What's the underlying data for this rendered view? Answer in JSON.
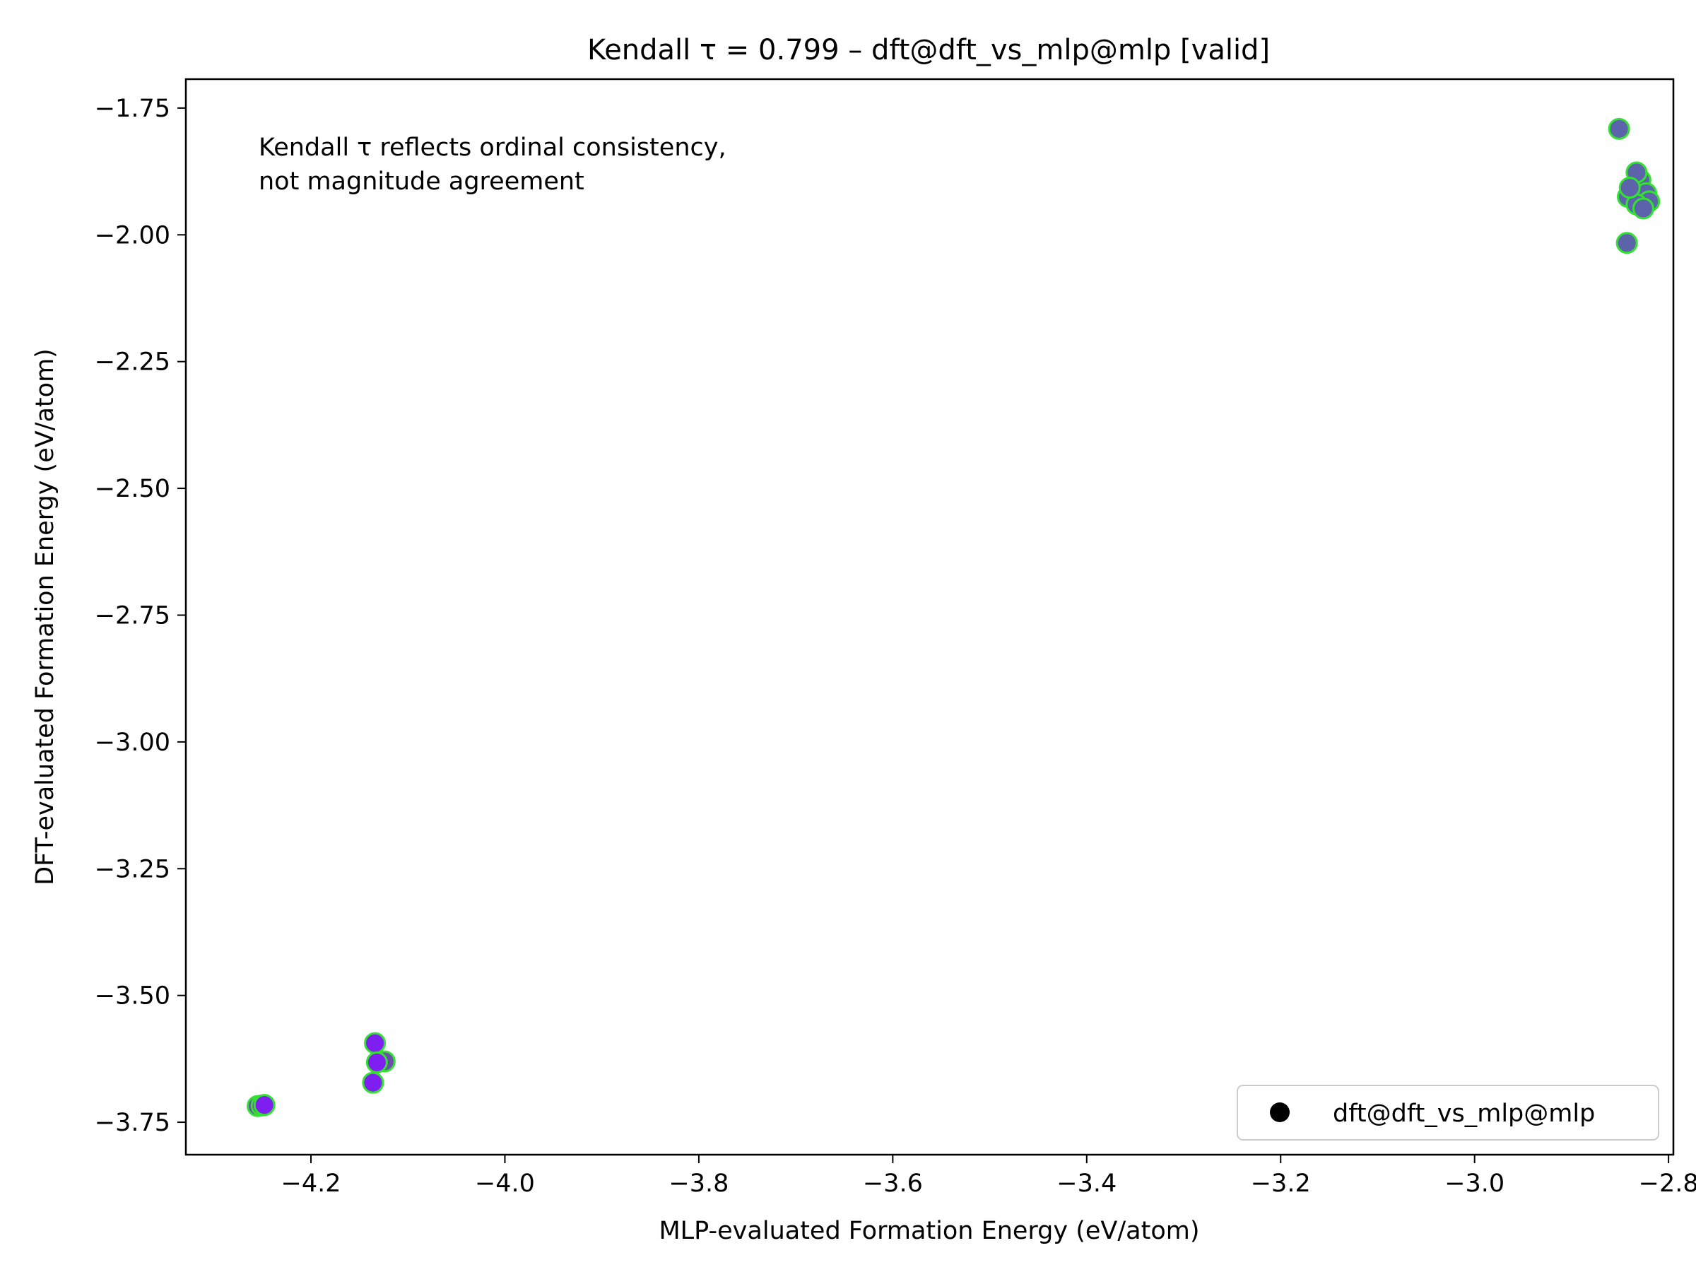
{
  "chart_data": {
    "type": "scatter",
    "title": "Kendall τ = 0.799 – dft@dft_vs_mlp@mlp [valid]",
    "xlabel": "MLP-evaluated Formation Energy (eV/atom)",
    "ylabel": "DFT-evaluated Formation Energy (eV/atom)",
    "xlim": [
      -4.329,
      -2.795
    ],
    "ylim": [
      -3.814,
      -1.693
    ],
    "xticks": [
      -4.2,
      -4.0,
      -3.8,
      -3.6,
      -3.4,
      -3.2,
      -3.0,
      -2.8
    ],
    "xtick_labels": [
      "−4.2",
      "−4.0",
      "−3.8",
      "−3.6",
      "−3.4",
      "−3.2",
      "−3.0",
      "−2.8"
    ],
    "yticks": [
      -1.75,
      -2.0,
      -2.25,
      -2.5,
      -2.75,
      -3.0,
      -3.25,
      -3.5,
      -3.75
    ],
    "ytick_labels": [
      "−1.75",
      "−2.00",
      "−2.25",
      "−2.50",
      "−2.75",
      "−3.00",
      "−3.25",
      "−3.50",
      "−3.75"
    ],
    "grid": false,
    "annotation": [
      "Kendall τ reflects ordinal consistency,",
      "not magnitude agreement"
    ],
    "legend": {
      "position": "lower-right",
      "entries": [
        "dft@dft_vs_mlp@mlp"
      ],
      "marker_color": "#000000"
    },
    "marker_edge_color": "#33e133",
    "series": [
      {
        "name": "dft@dft_vs_mlp@mlp",
        "points": [
          {
            "x": -4.255,
            "y": -3.718,
            "color": "#6b4fa8"
          },
          {
            "x": -4.251,
            "y": -3.717,
            "color": "#6b4fa8"
          },
          {
            "x": -4.248,
            "y": -3.716,
            "color": "#7e1ef0"
          },
          {
            "x": -4.134,
            "y": -3.594,
            "color": "#7e1ef0"
          },
          {
            "x": -4.124,
            "y": -3.63,
            "color": "#6b4fa8"
          },
          {
            "x": -4.132,
            "y": -3.632,
            "color": "#7e1ef0"
          },
          {
            "x": -4.136,
            "y": -3.672,
            "color": "#7e1ef0"
          },
          {
            "x": -2.851,
            "y": -1.791,
            "color": "#5c63aa"
          },
          {
            "x": -2.838,
            "y": -1.91,
            "color": "#5c63aa"
          },
          {
            "x": -2.829,
            "y": -1.892,
            "color": "#5c63aa"
          },
          {
            "x": -2.823,
            "y": -1.918,
            "color": "#5c63aa"
          },
          {
            "x": -2.82,
            "y": -1.934,
            "color": "#5c63aa"
          },
          {
            "x": -2.842,
            "y": -1.925,
            "color": "#5c63aa"
          },
          {
            "x": -2.833,
            "y": -1.94,
            "color": "#5c63aa"
          },
          {
            "x": -2.826,
            "y": -1.948,
            "color": "#5c63aa"
          },
          {
            "x": -2.833,
            "y": -1.877,
            "color": "#5c63aa"
          },
          {
            "x": -2.84,
            "y": -1.907,
            "color": "#5c63aa"
          },
          {
            "x": -2.843,
            "y": -2.016,
            "color": "#5c63aa"
          }
        ]
      }
    ]
  }
}
